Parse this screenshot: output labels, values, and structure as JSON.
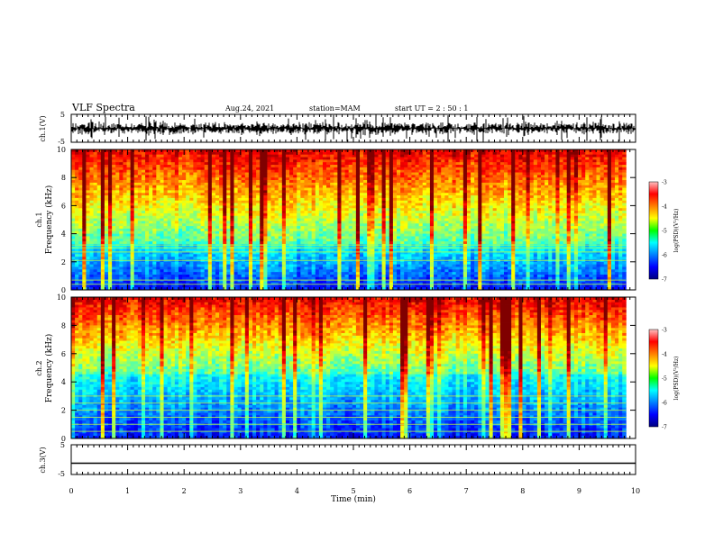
{
  "header": {
    "title": "VLF Spectra",
    "date": "Aug.24, 2021",
    "station": "station=MAM",
    "start": "start  UT =   2 : 50 : 1"
  },
  "chart_data": [
    {
      "type": "line",
      "name": "ch1-waveform",
      "ylabel": "ch.1(V)",
      "ylim": [
        -5,
        5
      ],
      "yticks": [
        "5",
        "-5"
      ],
      "xlim": [
        0,
        10
      ]
    },
    {
      "type": "heatmap",
      "name": "ch1-spectrogram",
      "ylabel_line1": "ch.1",
      "ylabel_line2": "Frequency  (kHz)",
      "ylim": [
        0,
        10
      ],
      "yticks": [
        "0",
        "2",
        "4",
        "6",
        "8",
        "10"
      ],
      "xlim": [
        0,
        9.83
      ],
      "colorbar": {
        "label": "log(PSD)(V²/Hz)",
        "range": [
          -7,
          -3
        ],
        "ticks": [
          "-3",
          "-4",
          "-5",
          "-6",
          "-7"
        ]
      },
      "background_band_khz": [
        0,
        3.3
      ],
      "notes_lines_khz": [
        0.4,
        0.7,
        2.1,
        2.7,
        3.0,
        3.2
      ]
    },
    {
      "type": "heatmap",
      "name": "ch2-spectrogram",
      "ylabel_line1": "ch.2",
      "ylabel_line2": "Frequency  (kHz)",
      "ylim": [
        0,
        10
      ],
      "yticks": [
        "0",
        "2",
        "4",
        "6",
        "8",
        "10"
      ],
      "xlim": [
        0,
        9.83
      ],
      "colorbar": {
        "label": "log(PSD)(V²/Hz)",
        "range": [
          -7,
          -3
        ],
        "ticks": [
          "-3",
          "-4",
          "-5",
          "-6",
          "-7"
        ]
      },
      "background_band_khz": [
        0,
        4.5
      ],
      "notes_lines_khz": [
        0.5,
        1.0,
        1.5,
        2.0,
        2.5,
        3.0
      ]
    },
    {
      "type": "line",
      "name": "ch3-waveform",
      "ylabel": "ch.3(V)",
      "ylim": [
        -5,
        5
      ],
      "yticks": [
        "5",
        "-5"
      ],
      "xlim": [
        0,
        10
      ],
      "constant_value": -1.2
    }
  ],
  "xaxis": {
    "label": "Time  (min)",
    "ticks": [
      "0",
      "1",
      "2",
      "3",
      "4",
      "5",
      "6",
      "7",
      "8",
      "9",
      "10"
    ]
  },
  "colors": {
    "frame": "#000000",
    "jet_low": "#00007f",
    "jet_high": "#ff0000"
  }
}
